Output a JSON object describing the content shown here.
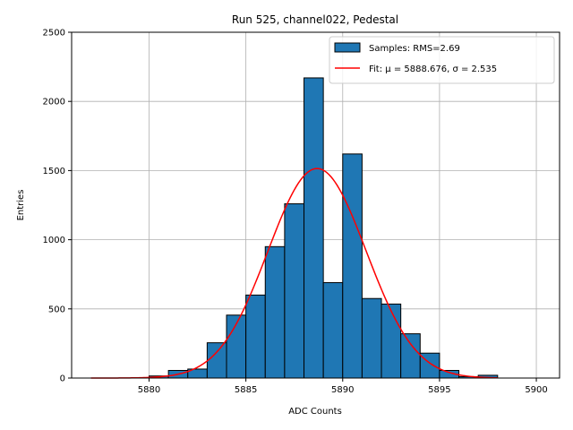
{
  "chart_data": {
    "type": "bar",
    "title": "Run 525, channel022, Pedestal",
    "xlabel": "ADC Counts",
    "ylabel": "Entries",
    "xlim": [
      5876,
      5901.2
    ],
    "ylim": [
      0,
      2500
    ],
    "xticks": [
      5880,
      5885,
      5890,
      5895,
      5900
    ],
    "yticks": [
      0,
      500,
      1000,
      1500,
      2000,
      2500
    ],
    "grid": true,
    "legend_position": "top-right",
    "bin_width": 1,
    "bins": [
      {
        "x": 5880,
        "value": 15
      },
      {
        "x": 5881,
        "value": 55
      },
      {
        "x": 5882,
        "value": 65
      },
      {
        "x": 5883,
        "value": 255
      },
      {
        "x": 5884,
        "value": 455
      },
      {
        "x": 5885,
        "value": 600
      },
      {
        "x": 5886,
        "value": 950
      },
      {
        "x": 5887,
        "value": 1260
      },
      {
        "x": 5888,
        "value": 2170
      },
      {
        "x": 5889,
        "value": 690
      },
      {
        "x": 5890,
        "value": 1620
      },
      {
        "x": 5891,
        "value": 575
      },
      {
        "x": 5892,
        "value": 535
      },
      {
        "x": 5893,
        "value": 320
      },
      {
        "x": 5894,
        "value": 180
      },
      {
        "x": 5895,
        "value": 55
      },
      {
        "x": 5896,
        "value": 10
      },
      {
        "x": 5897,
        "value": 20
      }
    ],
    "fit": {
      "mu": 5888.676,
      "sigma": 2.535,
      "amplitude": 1515,
      "x_range": [
        5877,
        5898
      ]
    },
    "series": [
      {
        "name": "Samples: RMS=2.69",
        "color": "#1f77b4",
        "kind": "histogram"
      },
      {
        "name": "Fit: μ = 5888.676, σ = 2.535",
        "color": "#ff0000",
        "kind": "line"
      }
    ]
  }
}
